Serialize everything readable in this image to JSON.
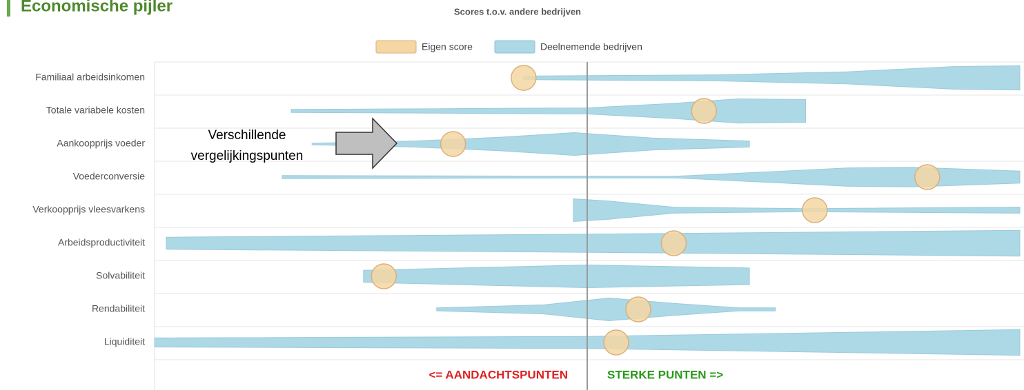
{
  "chart_data": {
    "type": "violin",
    "section_title": "Economische pijler",
    "title": "Scores t.o.v. andere bedrijven",
    "categories": [
      "Familiaal arbeidsinkomen",
      "Totale variabele kosten",
      "Aankoopprijs voeder",
      "Voederconversie",
      "Verkoopprijs vleesvarkens",
      "Arbeidsproductiviteit",
      "Solvabiliteit",
      "Rendabiliteit",
      "Liquiditeit"
    ],
    "xlim": [
      -100,
      100
    ],
    "reference_line": 0,
    "grid": true,
    "legend": "top",
    "series": [
      {
        "name": "Eigen score",
        "color": "#f5d7a3",
        "values": [
          -14.7,
          27,
          -31,
          78.6,
          52.6,
          20,
          -47,
          11.8,
          6.7
        ]
      },
      {
        "name": "Deelnemende bedrijven",
        "color": "#add8e6",
        "violins": [
          {
            "x": [
              -14.7,
              30,
              60,
              85,
              100
            ],
            "density": [
              0.12,
              0.2,
              0.4,
              0.75,
              0.8
            ]
          },
          {
            "x": [
              -68.4,
              0,
              20,
              35,
              50.5
            ],
            "density": [
              0.1,
              0.2,
              0.5,
              0.8,
              0.75
            ]
          },
          {
            "x": [
              -63.6,
              -40,
              -20,
              -3,
              15,
              37.5
            ],
            "density": [
              0.05,
              0.2,
              0.45,
              0.75,
              0.4,
              0.2
            ]
          },
          {
            "x": [
              -70.5,
              20,
              60,
              75,
              90,
              100
            ],
            "density": [
              0.1,
              0.05,
              0.6,
              0.65,
              0.5,
              0.4
            ]
          },
          {
            "x": [
              -3.2,
              5,
              20,
              50,
              100
            ],
            "density": [
              0.75,
              0.6,
              0.2,
              0.1,
              0.2
            ]
          },
          {
            "x": [
              -97.3,
              0,
              100
            ],
            "density": [
              0.4,
              0.6,
              0.85
            ]
          },
          {
            "x": [
              -51.7,
              0,
              37.5
            ],
            "density": [
              0.4,
              0.75,
              0.55
            ]
          },
          {
            "x": [
              -34.8,
              -10,
              5,
              20,
              35,
              43.5
            ],
            "density": [
              0.1,
              0.3,
              0.75,
              0.4,
              0.1,
              0.1
            ]
          },
          {
            "x": [
              -100,
              0,
              100
            ],
            "density": [
              0.3,
              0.4,
              0.85
            ]
          }
        ]
      }
    ],
    "annotation": [
      "Verschillende",
      "vergelijkingspunten"
    ],
    "left_label": "<= AANDACHTSPUNTEN",
    "right_label": "STERKE PUNTEN =>"
  }
}
